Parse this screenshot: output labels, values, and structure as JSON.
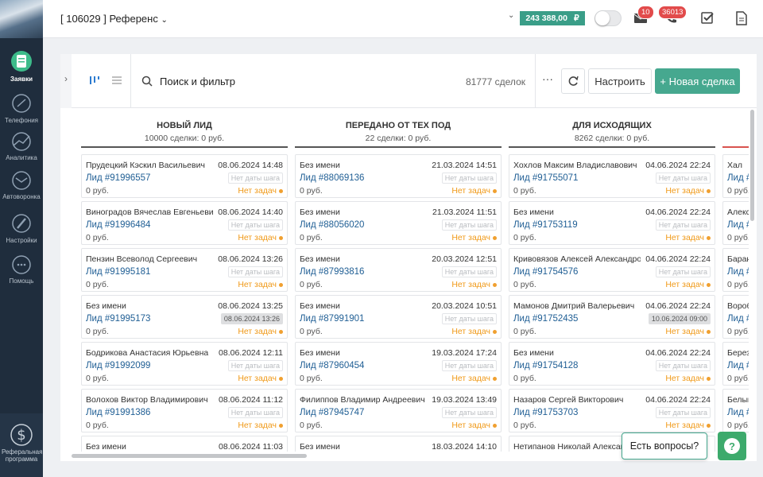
{
  "sidebar": {
    "items": [
      {
        "label": "Заявки"
      },
      {
        "label": "Телефония"
      },
      {
        "label": "Аналитика"
      },
      {
        "label": "Автоворонка"
      },
      {
        "label": "Настройки"
      },
      {
        "label": "Помощь"
      }
    ],
    "referral": "Реферальная программа"
  },
  "header": {
    "account": "[ 106029 ] Референс",
    "balance": "243 388,00",
    "currency": "₽",
    "mail_badge": "10",
    "phone_badge": "36013"
  },
  "toolbar": {
    "search": "Поиск и фильтр",
    "count": "81777 сделок",
    "settings_button": "Настроить",
    "new_button": "+ Новая сделка"
  },
  "board": {
    "columns": [
      {
        "title": "НОВЫЙ ЛИД",
        "subtitle": "10000 сделки: 0 руб.",
        "color": "#555555",
        "cards": [
          {
            "name": "Прудецкий Кэскил Васильевич",
            "date": "08.06.2024 14:48",
            "lead": "Лид #91996557",
            "step": "Нет даты шага",
            "sum": "0 руб.",
            "tasks": "Нет задач"
          },
          {
            "name": "Виноградов Вячеслав Евгеньевич",
            "date": "08.06.2024 14:40",
            "lead": "Лид #91996484",
            "step": "Нет даты шага",
            "sum": "0 руб.",
            "tasks": "Нет задач"
          },
          {
            "name": "Пензин Всеволод Сергеевич",
            "date": "08.06.2024 13:26",
            "lead": "Лид #91995181",
            "step": "Нет даты шага",
            "sum": "0 руб.",
            "tasks": "Нет задач"
          },
          {
            "name": "Без имени",
            "date": "08.06.2024 13:25",
            "lead": "Лид #91995173",
            "step": "08.06.2024 13:26",
            "sum": "0 руб.",
            "tasks": "Нет задач"
          },
          {
            "name": "Бодрикова Анастасия Юрьевна",
            "date": "08.06.2024 12:11",
            "lead": "Лид #91992099",
            "step": "Нет даты шага",
            "sum": "0 руб.",
            "tasks": "Нет задач"
          },
          {
            "name": "Волохов Виктор Владимирович",
            "date": "08.06.2024 11:12",
            "lead": "Лид #91991386",
            "step": "Нет даты шага",
            "sum": "0 руб.",
            "tasks": "Нет задач"
          },
          {
            "name": "Без имени",
            "date": "08.06.2024 11:03"
          }
        ]
      },
      {
        "title": "ПЕРЕДАНО ОТ ТЕХ ПОД",
        "subtitle": "22 сделки: 0 руб.",
        "color": "#555555",
        "cards": [
          {
            "name": "Без имени",
            "date": "21.03.2024 14:51",
            "lead": "Лид #88069136",
            "step": "Нет даты шага",
            "sum": "0 руб.",
            "tasks": "Нет задач"
          },
          {
            "name": "Без имени",
            "date": "21.03.2024 11:51",
            "lead": "Лид #88056020",
            "step": "Нет даты шага",
            "sum": "0 руб.",
            "tasks": "Нет задач"
          },
          {
            "name": "Без имени",
            "date": "20.03.2024 12:51",
            "lead": "Лид #87993816",
            "step": "Нет даты шага",
            "sum": "0 руб.",
            "tasks": "Нет задач"
          },
          {
            "name": "Без имени",
            "date": "20.03.2024 10:51",
            "lead": "Лид #87991901",
            "step": "Нет даты шага",
            "sum": "0 руб.",
            "tasks": "Нет задач"
          },
          {
            "name": "Без имени",
            "date": "19.03.2024 17:24",
            "lead": "Лид #87960454",
            "step": "Нет даты шага",
            "sum": "0 руб.",
            "tasks": "Нет задач"
          },
          {
            "name": "Филиппов Владимир Андреевич",
            "date": "19.03.2024 13:49",
            "lead": "Лид #87945747",
            "step": "Нет даты шага",
            "sum": "0 руб.",
            "tasks": "Нет задач"
          },
          {
            "name": "Без имени",
            "date": "18.03.2024 14:10"
          }
        ]
      },
      {
        "title": "ДЛЯ ИСХОДЯЩИХ",
        "subtitle": "8262 сделки: 0 руб.",
        "color": "#555555",
        "cards": [
          {
            "name": "Хохлов Максим Владиславович",
            "date": "04.06.2024 22:24",
            "lead": "Лид #91755071",
            "step": "Нет даты шага",
            "sum": "0 руб.",
            "tasks": "Нет задач"
          },
          {
            "name": "Без имени",
            "date": "04.06.2024 22:24",
            "lead": "Лид #91753119",
            "step": "Нет даты шага",
            "sum": "0 руб.",
            "tasks": "Нет задач"
          },
          {
            "name": "Кривовязов Алексей Александро...",
            "date": "04.06.2024 22:24",
            "lead": "Лид #91754576",
            "step": "Нет даты шага",
            "sum": "0 руб.",
            "tasks": "Нет задач"
          },
          {
            "name": "Мамонов Дмитрий Валерьевич",
            "date": "04.06.2024 22:24",
            "lead": "Лид #91752435",
            "step": "10.06.2024 09:00",
            "sum": "0 руб.",
            "tasks": "Нет задач"
          },
          {
            "name": "Без имени",
            "date": "04.06.2024 22:24",
            "lead": "Лид #91754128",
            "step": "Нет даты шага",
            "sum": "0 руб.",
            "tasks": "Нет задач"
          },
          {
            "name": "Назаров Сергей Викторович",
            "date": "04.06.2024 22:24",
            "lead": "Лид #91753703",
            "step": "Нет даты шага",
            "sum": "0 руб.",
            "tasks": "Нет задач"
          },
          {
            "name": "Нетипанов Николай Александ"
          }
        ]
      },
      {
        "color": "#d9534f",
        "cards": [
          {
            "name": "Хал",
            "lead": "Лид #",
            "sum": "0 руб."
          },
          {
            "name": "Алекс",
            "lead": "Лид #",
            "sum": "0 руб."
          },
          {
            "name": "Баран",
            "lead": "Лид #",
            "sum": "0 руб."
          },
          {
            "name": "Вороб",
            "lead": "Лид #",
            "sum": "0 руб."
          },
          {
            "name": "Берез",
            "lead": "Лид #",
            "sum": "0 руб."
          },
          {
            "name": "Белый",
            "lead": "Лид #",
            "sum": "0 руб."
          }
        ]
      }
    ]
  },
  "help": {
    "question": "Есть вопросы?",
    "button": "?"
  }
}
